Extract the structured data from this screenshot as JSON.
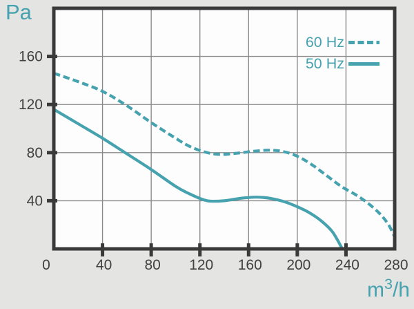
{
  "chart": {
    "y_axis_unit": "Pa",
    "x_axis_unit": {
      "base": "m",
      "superscript": "3",
      "rest": "/h"
    },
    "colors": {
      "accent": "#45a2ae",
      "frame": "#3a3a3a",
      "grid": "#8a8a8a",
      "text": "#414141",
      "plot_background": "#fdfdfd",
      "page_background": "#e4e4e2"
    }
  },
  "chart_data": {
    "type": "line",
    "xlabel": "m³/h",
    "ylabel": "Pa",
    "xlim": [
      0,
      280
    ],
    "ylim": [
      0,
      200
    ],
    "x_tick_labels": [
      0,
      40,
      80,
      120,
      160,
      200,
      240,
      280
    ],
    "x_ticks_marked": [
      40,
      80,
      120,
      160,
      200,
      240
    ],
    "y_tick_labels": [
      40,
      80,
      120,
      160
    ],
    "y_ticks_marked": [
      40,
      80,
      120,
      160
    ],
    "grid": true,
    "legend_position": "top-right-inside",
    "series": [
      {
        "name": "60 Hz",
        "style": "dashed",
        "points": [
          [
            0,
            146
          ],
          [
            20,
            139
          ],
          [
            40,
            131
          ],
          [
            60,
            119
          ],
          [
            80,
            105
          ],
          [
            100,
            92
          ],
          [
            112,
            85
          ],
          [
            124,
            80.5
          ],
          [
            136,
            78.5
          ],
          [
            150,
            79.5
          ],
          [
            163,
            81
          ],
          [
            176,
            82
          ],
          [
            188,
            81
          ],
          [
            200,
            77
          ],
          [
            212,
            70
          ],
          [
            224,
            61
          ],
          [
            236,
            52
          ],
          [
            248,
            45
          ],
          [
            258,
            38
          ],
          [
            268,
            29
          ],
          [
            275,
            20
          ],
          [
            280,
            10
          ]
        ]
      },
      {
        "name": "50 Hz",
        "style": "solid",
        "points": [
          [
            0,
            116
          ],
          [
            20,
            104
          ],
          [
            40,
            92
          ],
          [
            60,
            79
          ],
          [
            80,
            66
          ],
          [
            100,
            52
          ],
          [
            113,
            45
          ],
          [
            126,
            40
          ],
          [
            140,
            40
          ],
          [
            153,
            42
          ],
          [
            166,
            43
          ],
          [
            178,
            42
          ],
          [
            190,
            39
          ],
          [
            200,
            35
          ],
          [
            210,
            30
          ],
          [
            220,
            23
          ],
          [
            229,
            14
          ],
          [
            237,
            0
          ]
        ]
      }
    ]
  }
}
